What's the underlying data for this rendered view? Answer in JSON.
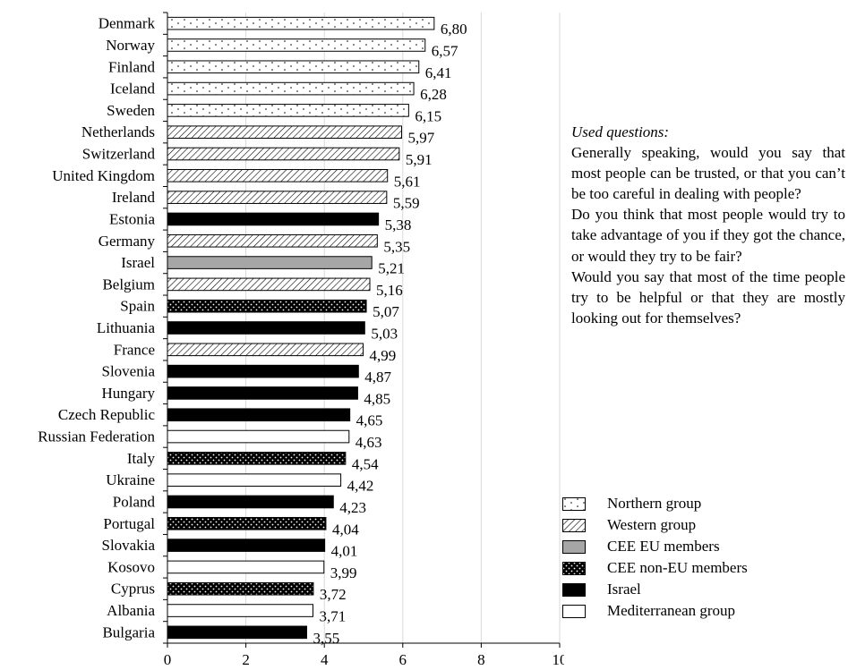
{
  "chart_data": {
    "type": "bar",
    "orientation": "horizontal",
    "xlim": [
      0,
      10
    ],
    "xticks": [
      0,
      2,
      4,
      6,
      8,
      10
    ],
    "grid": "vertical",
    "categories": [
      "Denmark",
      "Norway",
      "Finland",
      "Iceland",
      "Sweden",
      "Netherlands",
      "Switzerland",
      "United Kingdom",
      "Ireland",
      "Estonia",
      "Germany",
      "Israel",
      "Belgium",
      "Spain",
      "Lithuania",
      "France",
      "Slovenia",
      "Hungary",
      "Czech Republic",
      "Russian Federation",
      "Italy",
      "Ukraine",
      "Poland",
      "Portugal",
      "Slovakia",
      "Kosovo",
      "Cyprus",
      "Albania",
      "Bulgaria"
    ],
    "values": [
      6.8,
      6.57,
      6.41,
      6.28,
      6.15,
      5.97,
      5.91,
      5.61,
      5.59,
      5.38,
      5.35,
      5.21,
      5.16,
      5.07,
      5.03,
      4.99,
      4.87,
      4.85,
      4.65,
      4.63,
      4.54,
      4.42,
      4.23,
      4.04,
      4.01,
      3.99,
      3.72,
      3.71,
      3.55
    ],
    "value_labels": [
      "6,80",
      "6,57",
      "6,41",
      "6,28",
      "6,15",
      "5,97",
      "5,91",
      "5,61",
      "5,59",
      "5,38",
      "5,35",
      "5,21",
      "5,16",
      "5,07",
      "5,03",
      "4,99",
      "4,87",
      "4,85",
      "4,65",
      "4,63",
      "4,54",
      "4,42",
      "4,23",
      "4,04",
      "4,01",
      "3,99",
      "3,72",
      "3,71",
      "3,55"
    ],
    "bar_styles": [
      "dots",
      "dots",
      "dots",
      "dots",
      "dots",
      "hatch",
      "hatch",
      "hatch",
      "hatch",
      "black",
      "hatch",
      "gray",
      "hatch",
      "dark-dots",
      "black",
      "hatch",
      "black",
      "black",
      "black",
      "white",
      "dark-dots",
      "white",
      "black",
      "dark-dots",
      "black",
      "white",
      "dark-dots",
      "white",
      "black"
    ],
    "legend": [
      {
        "label": "Northern group",
        "style": "dots"
      },
      {
        "label": "Western group",
        "style": "hatch"
      },
      {
        "label": "CEE EU members",
        "style": "gray"
      },
      {
        "label": "CEE non-EU members",
        "style": "dark-dots"
      },
      {
        "label": "Israel",
        "style": "black"
      },
      {
        "label": "Mediterranean group",
        "style": "white"
      }
    ],
    "legend_position": "bottom-right"
  },
  "notes": {
    "title": "Used questions:",
    "lines": [
      "Generally speaking, would you say that most people can be trusted, or that you can’t be too careful in dealing with people?",
      "Do you think that most people would try to take advantage of you if they got the chance, or would they try to be fair?",
      "Would you say that most of the time people try to be helpful or that they are mostly looking out for themselves?"
    ]
  },
  "colors": {
    "black": "#000000",
    "gray": "#a6a6a6",
    "grid": "#d9d9d9"
  }
}
